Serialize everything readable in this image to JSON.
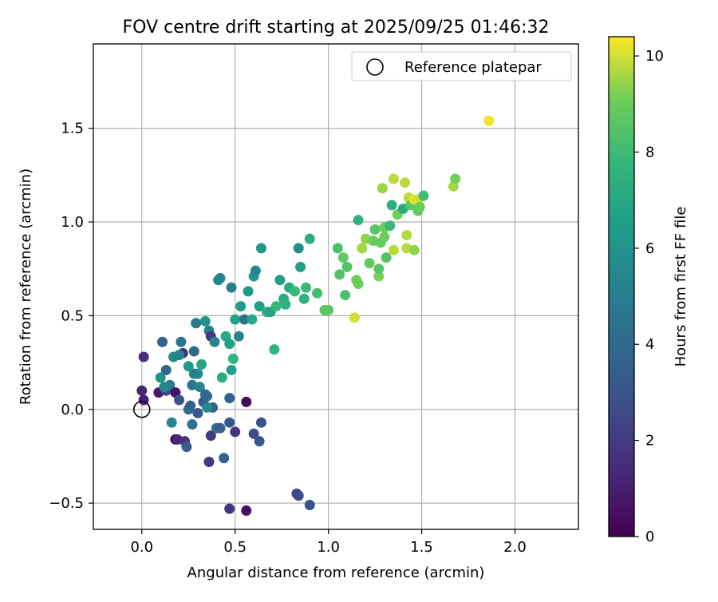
{
  "chart_data": {
    "type": "scatter",
    "title": "FOV centre drift starting at 2025/09/25 01:46:32",
    "xlabel": "Angular distance from reference (arcmin)",
    "ylabel": "Rotation from reference (arcmin)",
    "xlim": [
      -0.26,
      2.34
    ],
    "ylim": [
      -0.64,
      1.95
    ],
    "xticks": [
      0.0,
      0.5,
      1.0,
      1.5,
      2.0
    ],
    "xtick_labels": [
      "0.0",
      "0.5",
      "1.0",
      "1.5",
      "2.0"
    ],
    "yticks": [
      -0.5,
      0.0,
      0.5,
      1.0,
      1.5
    ],
    "ytick_labels": [
      "−0.5",
      "0.0",
      "0.5",
      "1.0",
      "1.5"
    ],
    "grid": true,
    "legend": {
      "position": "top-right",
      "entries": [
        "Reference platepar"
      ]
    },
    "reference_point": {
      "x": 0.0,
      "y": 0.0
    },
    "colorbar": {
      "label": "Hours from first FF file",
      "colormap": "viridis",
      "range": [
        0,
        10.4
      ],
      "ticks": [
        0,
        2,
        4,
        6,
        8,
        10
      ],
      "tick_labels": [
        "0",
        "2",
        "4",
        "6",
        "8",
        "10"
      ]
    },
    "points": [
      [
        0.0,
        0.1,
        1.2
      ],
      [
        0.01,
        0.05,
        1.1
      ],
      [
        0.01,
        0.28,
        1.6
      ],
      [
        0.09,
        0.09,
        0.8
      ],
      [
        0.13,
        0.1,
        2.6
      ],
      [
        0.11,
        0.36,
        3.6
      ],
      [
        0.13,
        0.21,
        3.9
      ],
      [
        0.15,
        0.13,
        4.9
      ],
      [
        0.16,
        -0.07,
        5.3
      ],
      [
        0.18,
        0.09,
        0.6
      ],
      [
        0.18,
        -0.16,
        0.3
      ],
      [
        0.19,
        -0.16,
        1.2
      ],
      [
        0.2,
        0.05,
        3.0
      ],
      [
        0.22,
        0.3,
        1.8
      ],
      [
        0.21,
        0.36,
        4.5
      ],
      [
        0.23,
        -0.17,
        1.8
      ],
      [
        0.24,
        -0.2,
        3.5
      ],
      [
        0.25,
        0.0,
        4.2
      ],
      [
        0.27,
        0.13,
        4.4
      ],
      [
        0.27,
        -0.08,
        4.3
      ],
      [
        0.28,
        0.31,
        4.0
      ],
      [
        0.29,
        0.46,
        4.8
      ],
      [
        0.3,
        0.19,
        5.8
      ],
      [
        0.31,
        0.12,
        5.2
      ],
      [
        0.33,
        0.04,
        3.4
      ],
      [
        0.35,
        0.07,
        4.4
      ],
      [
        0.36,
        0.42,
        5.1
      ],
      [
        0.37,
        0.39,
        2.0
      ],
      [
        0.38,
        0.01,
        3.6
      ],
      [
        0.39,
        0.36,
        5.4
      ],
      [
        0.36,
        -0.28,
        2.0
      ],
      [
        0.37,
        -0.14,
        2.0
      ],
      [
        0.4,
        -0.1,
        4.1
      ],
      [
        0.42,
        -0.1,
        3.5
      ],
      [
        0.43,
        0.17,
        7.3
      ],
      [
        0.44,
        -0.26,
        3.6
      ],
      [
        0.41,
        0.69,
        5.5
      ],
      [
        0.42,
        0.7,
        5.3
      ],
      [
        0.45,
        0.39,
        7.0
      ],
      [
        0.47,
        0.06,
        3.6
      ],
      [
        0.47,
        0.35,
        6.6
      ],
      [
        0.48,
        0.21,
        6.6
      ],
      [
        0.49,
        0.27,
        7.6
      ],
      [
        0.48,
        0.65,
        5.0
      ],
      [
        0.5,
        0.48,
        6.7
      ],
      [
        0.52,
        0.39,
        5.2
      ],
      [
        0.53,
        0.55,
        6.3
      ],
      [
        0.55,
        0.48,
        4.3
      ],
      [
        0.56,
        0.04,
        0.4
      ],
      [
        0.57,
        0.63,
        6.3
      ],
      [
        0.59,
        0.48,
        7.0
      ],
      [
        0.6,
        0.71,
        6.2
      ],
      [
        0.61,
        0.74,
        5.4
      ],
      [
        0.63,
        0.55,
        6.6
      ],
      [
        0.64,
        0.86,
        6.2
      ],
      [
        0.67,
        0.52,
        7.4
      ],
      [
        0.69,
        0.52,
        6.8
      ],
      [
        0.71,
        0.32,
        7.6
      ],
      [
        0.72,
        0.55,
        7.8
      ],
      [
        0.74,
        0.69,
        6.6
      ],
      [
        0.76,
        0.59,
        7.1
      ],
      [
        0.77,
        0.56,
        7.4
      ],
      [
        0.79,
        0.65,
        7.2
      ],
      [
        0.82,
        0.63,
        7.9
      ],
      [
        0.84,
        0.86,
        5.7
      ],
      [
        0.85,
        0.76,
        6.6
      ],
      [
        0.87,
        0.59,
        7.5
      ],
      [
        0.88,
        0.65,
        7.9
      ],
      [
        0.9,
        0.91,
        7.3
      ],
      [
        0.94,
        0.62,
        8.1
      ],
      [
        0.98,
        0.53,
        8.6
      ],
      [
        1.0,
        0.53,
        8.7
      ],
      [
        1.05,
        0.86,
        8.3
      ],
      [
        1.06,
        0.72,
        8.5
      ],
      [
        1.08,
        0.81,
        8.8
      ],
      [
        1.09,
        0.61,
        8.3
      ],
      [
        1.1,
        0.76,
        8.5
      ],
      [
        1.14,
        0.49,
        10.0
      ],
      [
        1.15,
        0.69,
        9.1
      ],
      [
        1.16,
        0.67,
        9.0
      ],
      [
        1.18,
        0.86,
        9.6
      ],
      [
        1.2,
        0.91,
        9.4
      ],
      [
        1.22,
        0.78,
        8.9
      ],
      [
        1.24,
        0.9,
        9.0
      ],
      [
        1.16,
        1.01,
        7.5
      ],
      [
        1.25,
        0.96,
        8.6
      ],
      [
        1.27,
        0.71,
        9.2
      ],
      [
        1.27,
        0.75,
        8.6
      ],
      [
        1.28,
        0.89,
        8.9
      ],
      [
        1.3,
        0.92,
        9.0
      ],
      [
        1.29,
        1.18,
        9.5
      ],
      [
        1.3,
        0.97,
        9.1
      ],
      [
        1.31,
        0.81,
        8.5
      ],
      [
        1.33,
        0.98,
        7.9
      ],
      [
        1.34,
        1.09,
        7.4
      ],
      [
        1.35,
        1.23,
        9.8
      ],
      [
        1.35,
        0.85,
        9.8
      ],
      [
        1.37,
        1.04,
        9.1
      ],
      [
        1.4,
        1.07,
        7.2
      ],
      [
        1.41,
        1.21,
        9.8
      ],
      [
        1.42,
        0.93,
        9.7
      ],
      [
        1.42,
        0.86,
        9.8
      ],
      [
        1.43,
        1.13,
        9.8
      ],
      [
        1.44,
        1.09,
        8.7
      ],
      [
        1.46,
        0.85,
        9.4
      ],
      [
        1.46,
        1.12,
        10.2
      ],
      [
        1.48,
        1.12,
        10.0
      ],
      [
        1.48,
        1.06,
        8.9
      ],
      [
        1.49,
        1.08,
        9.0
      ],
      [
        1.51,
        1.14,
        8.0
      ],
      [
        1.67,
        1.19,
        9.6
      ],
      [
        1.68,
        1.23,
        9.1
      ],
      [
        1.86,
        1.54,
        10.3
      ],
      [
        0.47,
        -0.07,
        3.2
      ],
      [
        0.5,
        -0.12,
        1.9
      ],
      [
        0.56,
        -0.54,
        0.5
      ],
      [
        0.6,
        -0.13,
        2.6
      ],
      [
        0.63,
        -0.17,
        3.2
      ],
      [
        0.64,
        -0.07,
        3.1
      ],
      [
        0.47,
        -0.53,
        1.8
      ],
      [
        0.83,
        -0.45,
        2.4
      ],
      [
        0.84,
        -0.46,
        2.6
      ],
      [
        0.9,
        -0.51,
        2.9
      ],
      [
        0.1,
        0.17,
        6.0
      ],
      [
        0.12,
        0.12,
        5.4
      ],
      [
        0.17,
        0.28,
        5.6
      ],
      [
        0.2,
        0.29,
        5.2
      ],
      [
        0.25,
        0.23,
        6.4
      ],
      [
        0.28,
        0.19,
        5.0
      ],
      [
        0.32,
        0.24,
        6.8
      ],
      [
        0.34,
        0.08,
        4.0
      ],
      [
        0.34,
        0.47,
        6.0
      ],
      [
        0.26,
        0.02,
        3.6
      ],
      [
        0.3,
        -0.02,
        3.2
      ],
      [
        0.35,
        0.01,
        5.6
      ]
    ]
  }
}
